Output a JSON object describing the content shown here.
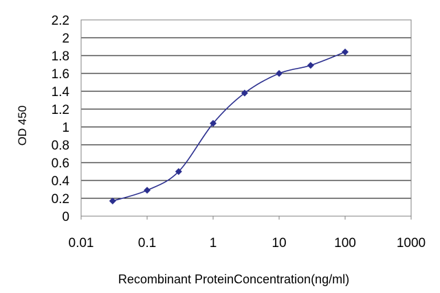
{
  "chart_data": {
    "type": "line",
    "xlabel": "Recombinant ProteinConcentration(ng/ml)",
    "ylabel": "OD 450",
    "xscale": "log",
    "xlim": [
      0.01,
      1000
    ],
    "ylim": [
      0,
      2.2
    ],
    "x_tick_labels": [
      "0.01",
      "0.1",
      "1",
      "10",
      "100",
      "1000"
    ],
    "x_tick_values": [
      0.01,
      0.1,
      1,
      10,
      100,
      1000
    ],
    "y_tick_labels": [
      "0",
      "0.2",
      "0.4",
      "0.6",
      "0.8",
      "1",
      "1.2",
      "1.4",
      "1.6",
      "1.8",
      "2",
      "2.2"
    ],
    "y_tick_values": [
      0,
      0.2,
      0.4,
      0.6,
      0.8,
      1,
      1.2,
      1.4,
      1.6,
      1.8,
      2,
      2.2
    ],
    "grid": "horizontal",
    "legend": "none",
    "colors": {
      "series": "#2b2f8f",
      "grid": "#000000",
      "axis": "#808080"
    },
    "series": [
      {
        "x": [
          0.03,
          0.1,
          0.3,
          1,
          3,
          10,
          30,
          100
        ],
        "y": [
          0.17,
          0.29,
          0.5,
          1.04,
          1.38,
          1.6,
          1.69,
          1.84
        ]
      }
    ]
  }
}
